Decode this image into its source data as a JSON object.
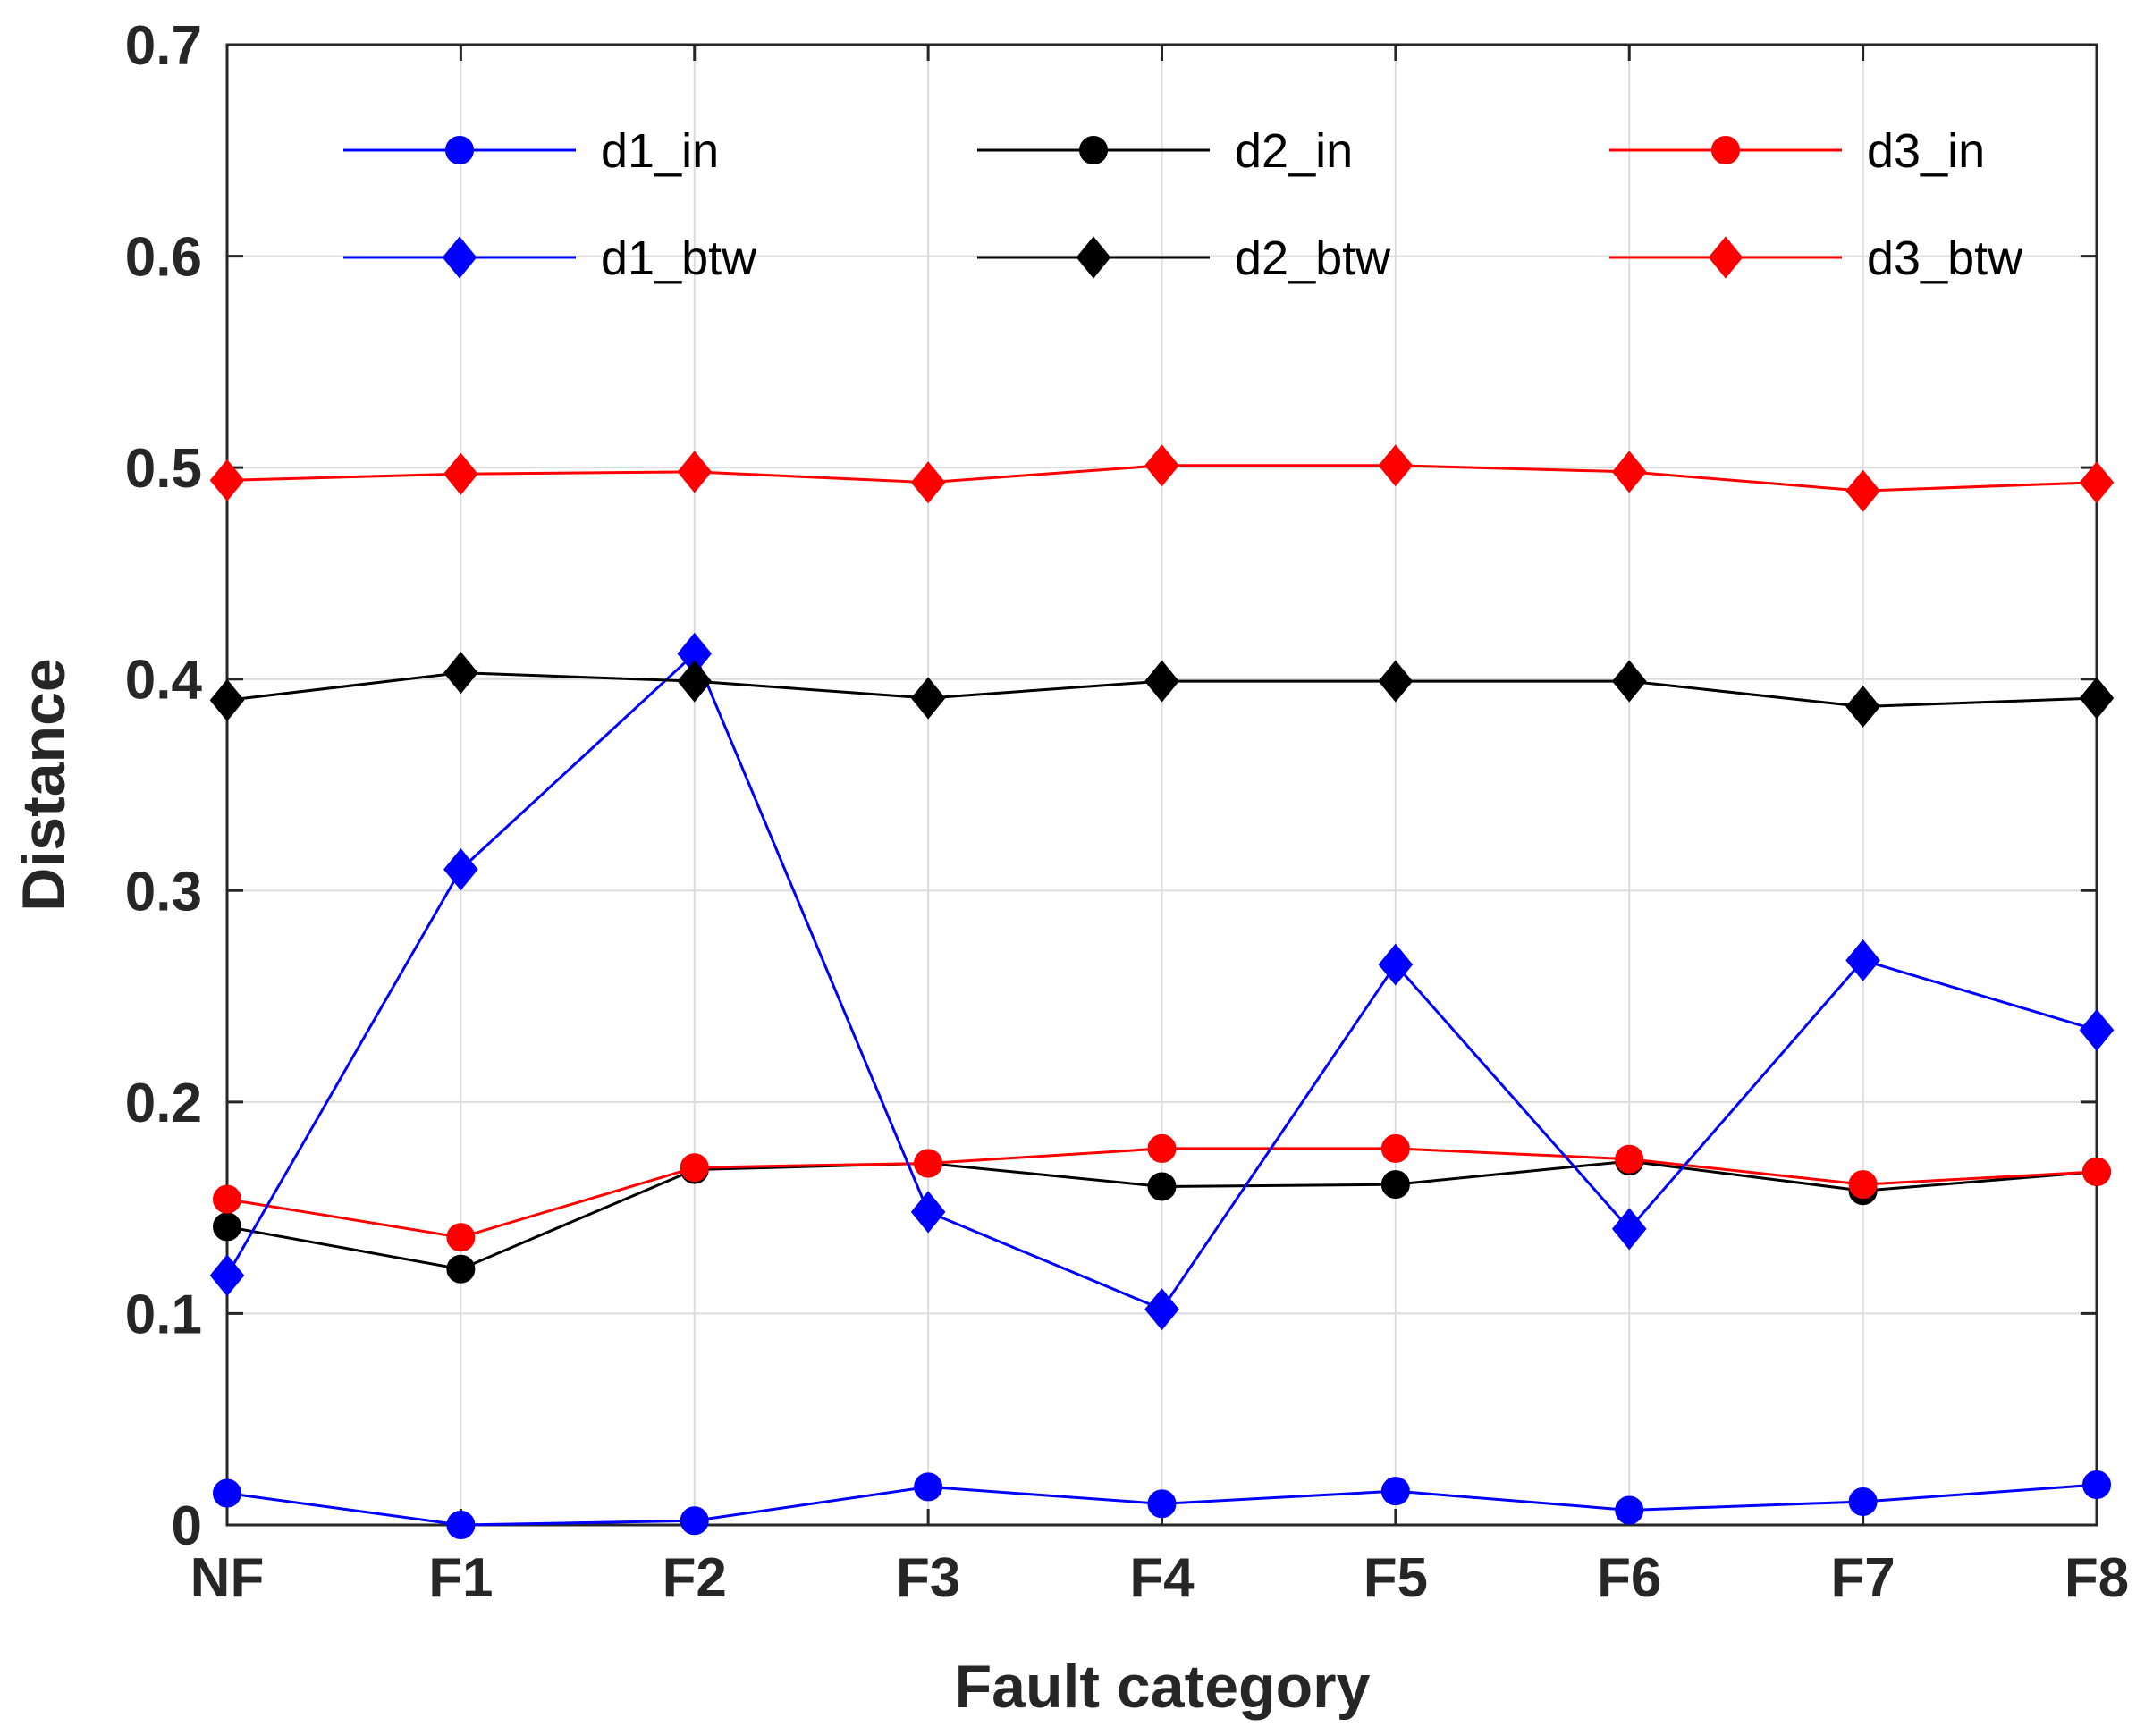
{
  "chart_data": {
    "type": "line",
    "title": "",
    "xlabel": "Fault category",
    "ylabel": "Distance",
    "categories": [
      "NF",
      "F1",
      "F2",
      "F3",
      "F4",
      "F5",
      "F6",
      "F7",
      "F8"
    ],
    "ylim": [
      0,
      0.7
    ],
    "yticks": [
      0,
      0.1,
      0.2,
      0.3,
      0.4,
      0.5,
      0.6,
      0.7
    ],
    "ytick_labels": [
      "0",
      "0.1",
      "0.2",
      "0.3",
      "0.4",
      "0.5",
      "0.6",
      "0.7"
    ],
    "grid": true,
    "legend": {
      "placement": "top",
      "columns": 3
    },
    "series": [
      {
        "name": "d1_in",
        "color": "#0000ff",
        "marker": "circle",
        "values": [
          0.015,
          0.0,
          0.002,
          0.018,
          0.01,
          0.016,
          0.007,
          0.011,
          0.019
        ]
      },
      {
        "name": "d2_in",
        "color": "#000000",
        "marker": "circle",
        "values": [
          0.141,
          0.121,
          0.168,
          0.171,
          0.16,
          0.161,
          0.172,
          0.158,
          0.167
        ]
      },
      {
        "name": "d3_in",
        "color": "#ff0000",
        "marker": "circle",
        "values": [
          0.154,
          0.136,
          0.169,
          0.171,
          0.178,
          0.178,
          0.173,
          0.161,
          0.167
        ]
      },
      {
        "name": "d1_btw",
        "color": "#0000ff",
        "marker": "diamond",
        "values": [
          0.118,
          0.31,
          0.412,
          0.148,
          0.102,
          0.265,
          0.14,
          0.267,
          0.234
        ]
      },
      {
        "name": "d2_btw",
        "color": "#000000",
        "marker": "diamond",
        "values": [
          0.39,
          0.403,
          0.399,
          0.391,
          0.399,
          0.399,
          0.399,
          0.387,
          0.391
        ]
      },
      {
        "name": "d3_btw",
        "color": "#ff0000",
        "marker": "diamond",
        "values": [
          0.494,
          0.497,
          0.498,
          0.493,
          0.501,
          0.501,
          0.498,
          0.489,
          0.493
        ]
      }
    ]
  }
}
